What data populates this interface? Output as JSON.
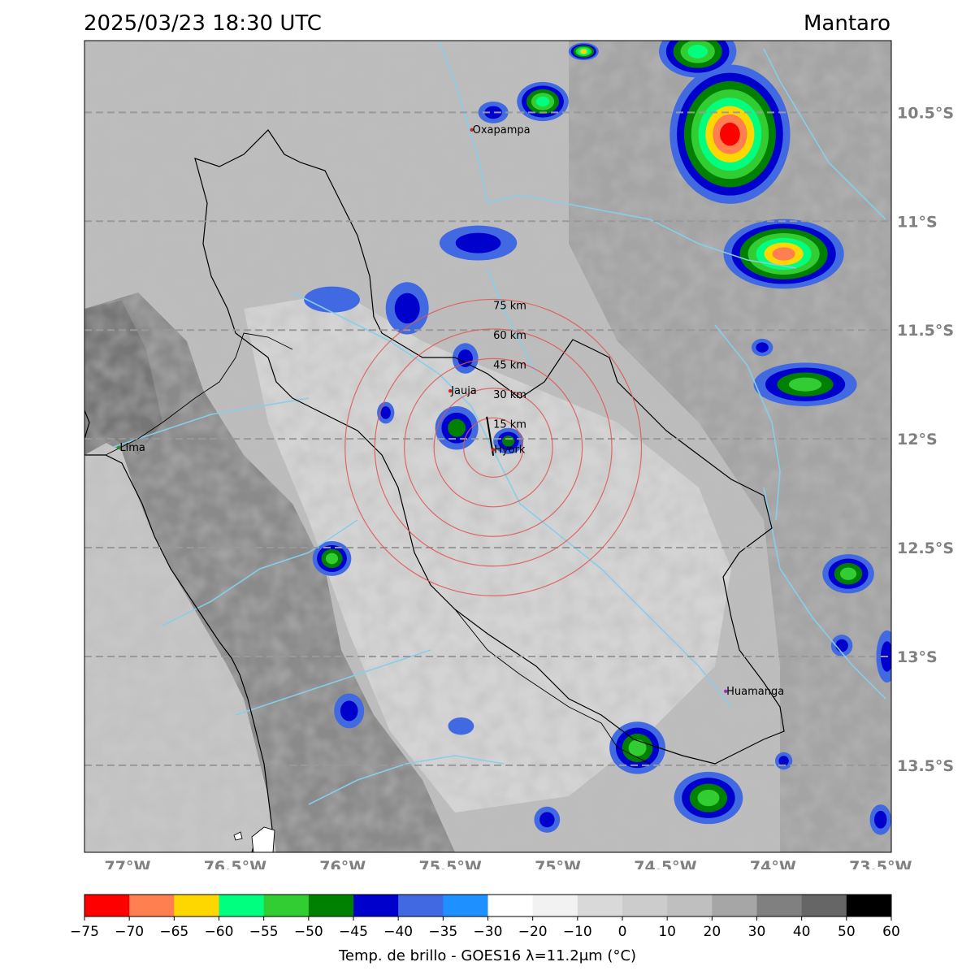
{
  "header": {
    "timestamp": "2025/03/23 18:30 UTC",
    "region": "Mantaro"
  },
  "map": {
    "lon_range": [
      -77.2,
      -73.45
    ],
    "lat_range": [
      -13.9,
      -10.17
    ],
    "lon_ticks": [
      {
        "value": -77.0,
        "label": "77°W"
      },
      {
        "value": -76.5,
        "label": "76.5°W"
      },
      {
        "value": -76.0,
        "label": "76°W"
      },
      {
        "value": -75.5,
        "label": "75.5°W"
      },
      {
        "value": -75.0,
        "label": "75°W"
      },
      {
        "value": -74.5,
        "label": "74.5°W"
      },
      {
        "value": -74.0,
        "label": "74°W"
      },
      {
        "value": -73.5,
        "label": "73.5°W"
      }
    ],
    "lat_ticks": [
      {
        "value": -10.5,
        "label": "10.5°S"
      },
      {
        "value": -11.0,
        "label": "11°S"
      },
      {
        "value": -11.5,
        "label": "11.5°S"
      },
      {
        "value": -12.0,
        "label": "12°S"
      },
      {
        "value": -12.5,
        "label": "12.5°S"
      },
      {
        "value": -13.0,
        "label": "13°S"
      },
      {
        "value": -13.5,
        "label": "13.5°S"
      }
    ],
    "cities": [
      {
        "name": "Oxapampa",
        "lon": -75.4,
        "lat": -10.58,
        "color": "#cc2222"
      },
      {
        "name": "Jauja",
        "lon": -75.5,
        "lat": -11.78,
        "color": "#cc2222"
      },
      {
        "name": "Hyork",
        "lon": -75.3,
        "lat": -12.05,
        "color": "#cc2222"
      },
      {
        "name": "Lima",
        "lon": -77.04,
        "lat": -12.04,
        "color": "#2a8f2a"
      },
      {
        "name": "Huamanga",
        "lon": -74.22,
        "lat": -13.16,
        "color": "#9b30d0"
      }
    ],
    "radar_center": {
      "lon": -75.3,
      "lat": -12.04
    },
    "range_rings": [
      {
        "radius_km": 15,
        "label": "15 km"
      },
      {
        "radius_km": 30,
        "label": "30 km"
      },
      {
        "radius_km": 45,
        "label": "45 km"
      },
      {
        "radius_km": 60,
        "label": "60 km"
      },
      {
        "radius_km": 75,
        "label": "75 km"
      }
    ],
    "convective_cells": [
      {
        "lon": -74.2,
        "lat": -10.6,
        "rx": 0.28,
        "ry": 0.32,
        "min_temp": -72
      },
      {
        "lon": -74.35,
        "lat": -10.22,
        "rx": 0.18,
        "ry": 0.12,
        "min_temp": -58
      },
      {
        "lon": -73.95,
        "lat": -11.15,
        "rx": 0.28,
        "ry": 0.16,
        "min_temp": -67
      },
      {
        "lon": -75.07,
        "lat": -10.45,
        "rx": 0.12,
        "ry": 0.09,
        "min_temp": -56
      },
      {
        "lon": -75.3,
        "lat": -10.5,
        "rx": 0.07,
        "ry": 0.05,
        "min_temp": -42
      },
      {
        "lon": -74.88,
        "lat": -10.22,
        "rx": 0.07,
        "ry": 0.04,
        "min_temp": -62
      },
      {
        "lon": -75.37,
        "lat": -11.1,
        "rx": 0.18,
        "ry": 0.08,
        "min_temp": -40
      },
      {
        "lon": -75.7,
        "lat": -11.4,
        "rx": 0.1,
        "ry": 0.12,
        "min_temp": -42
      },
      {
        "lon": -76.05,
        "lat": -11.36,
        "rx": 0.13,
        "ry": 0.06,
        "min_temp": -36
      },
      {
        "lon": -75.47,
        "lat": -11.95,
        "rx": 0.1,
        "ry": 0.1,
        "min_temp": -46
      },
      {
        "lon": -75.23,
        "lat": -12.01,
        "rx": 0.07,
        "ry": 0.06,
        "min_temp": -45
      },
      {
        "lon": -75.43,
        "lat": -11.63,
        "rx": 0.06,
        "ry": 0.07,
        "min_temp": -44
      },
      {
        "lon": -75.8,
        "lat": -11.88,
        "rx": 0.04,
        "ry": 0.05,
        "min_temp": -40
      },
      {
        "lon": -73.85,
        "lat": -11.75,
        "rx": 0.24,
        "ry": 0.1,
        "min_temp": -52
      },
      {
        "lon": -74.05,
        "lat": -11.58,
        "rx": 0.05,
        "ry": 0.04,
        "min_temp": -42
      },
      {
        "lon": -73.65,
        "lat": -12.62,
        "rx": 0.12,
        "ry": 0.09,
        "min_temp": -50
      },
      {
        "lon": -73.68,
        "lat": -12.95,
        "rx": 0.05,
        "ry": 0.05,
        "min_temp": -42
      },
      {
        "lon": -73.47,
        "lat": -13.0,
        "rx": 0.05,
        "ry": 0.12,
        "min_temp": -40
      },
      {
        "lon": -76.05,
        "lat": -12.55,
        "rx": 0.09,
        "ry": 0.08,
        "min_temp": -50
      },
      {
        "lon": -75.97,
        "lat": -13.25,
        "rx": 0.07,
        "ry": 0.08,
        "min_temp": -43
      },
      {
        "lon": -74.63,
        "lat": -13.42,
        "rx": 0.13,
        "ry": 0.12,
        "min_temp": -52
      },
      {
        "lon": -74.3,
        "lat": -13.65,
        "rx": 0.16,
        "ry": 0.12,
        "min_temp": -53
      },
      {
        "lon": -73.5,
        "lat": -13.75,
        "rx": 0.05,
        "ry": 0.07,
        "min_temp": -42
      },
      {
        "lon": -75.45,
        "lat": -13.32,
        "rx": 0.06,
        "ry": 0.04,
        "min_temp": -38
      },
      {
        "lon": -75.05,
        "lat": -13.75,
        "rx": 0.06,
        "ry": 0.06,
        "min_temp": -42
      },
      {
        "lon": -73.95,
        "lat": -13.48,
        "rx": 0.04,
        "ry": 0.04,
        "min_temp": -40
      }
    ]
  },
  "colorbar": {
    "label": "Temp. de brillo - GOES16 λ=11.2μm (°C)",
    "ticks": [
      "−75",
      "−70",
      "−65",
      "−60",
      "−55",
      "−50",
      "−45",
      "−40",
      "−35",
      "−30",
      "−20",
      "−10",
      "0",
      "10",
      "20",
      "30",
      "40",
      "50",
      "60"
    ],
    "colors": [
      "#ff0000",
      "#ff7f50",
      "#ffd700",
      "#00ff7f",
      "#32cd32",
      "#008000",
      "#0000cd",
      "#4169e1",
      "#1e90ff",
      "#ffffff",
      "#f2f2f2",
      "#d9d9d9",
      "#cccccc",
      "#bfbfbf",
      "#a6a6a6",
      "#808080",
      "#666666",
      "#000000"
    ]
  }
}
